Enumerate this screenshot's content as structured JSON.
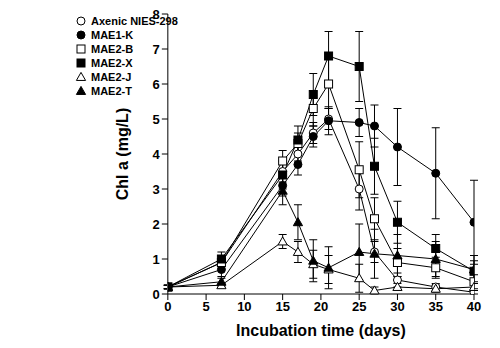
{
  "chart_data": {
    "type": "line",
    "x_label": "Incubation time (days)",
    "y_label": "Chl a (mg/L)",
    "x": [
      0,
      7,
      15,
      17,
      19,
      21,
      25,
      27,
      30,
      35,
      40
    ],
    "xlim": [
      0,
      40
    ],
    "xticks": [
      0,
      5,
      10,
      15,
      20,
      25,
      30,
      35,
      40
    ],
    "ylim": [
      0,
      8
    ],
    "yticks": [
      0,
      1,
      2,
      3,
      4,
      5,
      6,
      7,
      8
    ],
    "legend": "upper left",
    "grid": false,
    "series": [
      {
        "name": "Axenic NIES-298",
        "color": "#000000",
        "marker": "circle-open",
        "values": [
          0.2,
          0.9,
          3.5,
          4.0,
          4.6,
          5.0,
          3.0,
          1.2,
          0.4,
          0.2,
          0.05
        ],
        "errors": [
          0.05,
          0.1,
          0.3,
          0.2,
          0.3,
          0.3,
          0.6,
          0.3,
          0.2,
          0.1,
          0.05
        ]
      },
      {
        "name": "MAE1-K",
        "color": "#000000",
        "marker": "circle-filled",
        "values": [
          0.2,
          0.7,
          3.1,
          3.7,
          4.5,
          4.95,
          4.9,
          4.8,
          4.2,
          3.45,
          2.05
        ],
        "errors": [
          0.05,
          0.2,
          0.3,
          0.3,
          0.3,
          0.4,
          0.4,
          0.6,
          1.1,
          1.3,
          1.2
        ]
      },
      {
        "name": "MAE2-B",
        "color": "#000000",
        "marker": "square-open",
        "values": [
          0.2,
          0.9,
          3.8,
          4.3,
          5.3,
          6.0,
          3.55,
          2.15,
          0.9,
          0.75,
          0.35
        ],
        "errors": [
          0.05,
          0.1,
          0.3,
          0.3,
          0.5,
          0.7,
          0.8,
          0.6,
          0.4,
          0.3,
          0.2
        ]
      },
      {
        "name": "MAE2-X",
        "color": "#000000",
        "marker": "square-filled",
        "values": [
          0.2,
          1.0,
          3.4,
          4.4,
          5.7,
          6.8,
          6.5,
          3.65,
          2.05,
          1.3,
          0.65
        ],
        "errors": [
          0.05,
          0.2,
          0.4,
          0.4,
          0.6,
          0.7,
          1.0,
          0.8,
          0.6,
          0.4,
          0.3
        ]
      },
      {
        "name": "MAE2-J",
        "color": "#000000",
        "marker": "triangle-open",
        "values": [
          0.2,
          0.25,
          1.5,
          1.2,
          0.85,
          0.7,
          0.45,
          0.1,
          0.2,
          0.15,
          0.2
        ],
        "errors": [
          0.05,
          0.05,
          0.2,
          0.3,
          0.4,
          0.4,
          0.4,
          0.1,
          0.1,
          0.1,
          0.1
        ]
      },
      {
        "name": "MAE2-T",
        "color": "#000000",
        "marker": "triangle-filled",
        "values": [
          0.2,
          0.35,
          2.95,
          2.05,
          0.95,
          0.75,
          1.2,
          1.15,
          1.1,
          1.0,
          0.7
        ],
        "errors": [
          0.05,
          0.1,
          0.4,
          0.5,
          0.6,
          0.6,
          0.8,
          0.7,
          0.6,
          0.5,
          0.4
        ]
      }
    ]
  }
}
